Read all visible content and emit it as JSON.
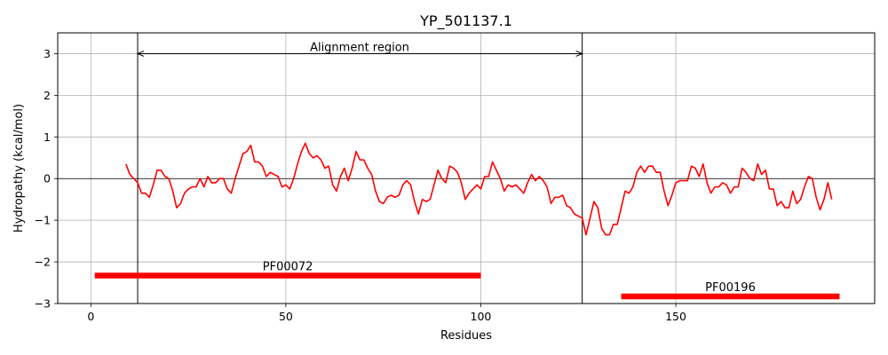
{
  "chart_data": {
    "type": "line",
    "title": "YP_501137.1",
    "xlabel": "Residues",
    "ylabel": "Hydropathy (kcal/mol)",
    "xlim": [
      -8.5,
      201
    ],
    "ylim": [
      -3,
      3.5
    ],
    "xticks": [
      0,
      50,
      100,
      150
    ],
    "yticks": [
      -3,
      -2,
      -1,
      0,
      1,
      2,
      3
    ],
    "grid": true,
    "series": [
      {
        "color": "#ff0000",
        "points": [
          [
            9,
            0.35
          ],
          [
            10,
            0.1
          ],
          [
            11,
            0.0
          ],
          [
            12,
            -0.1
          ],
          [
            13,
            -0.35
          ],
          [
            14,
            -0.35
          ],
          [
            15,
            -0.45
          ],
          [
            16,
            -0.15
          ],
          [
            17,
            0.2
          ],
          [
            18,
            0.2
          ],
          [
            19,
            0.05
          ],
          [
            20,
            0.0
          ],
          [
            21,
            -0.3
          ],
          [
            22,
            -0.7
          ],
          [
            23,
            -0.6
          ],
          [
            24,
            -0.35
          ],
          [
            25,
            -0.25
          ],
          [
            26,
            -0.2
          ],
          [
            27,
            -0.2
          ],
          [
            28,
            0.0
          ],
          [
            29,
            -0.2
          ],
          [
            30,
            0.05
          ],
          [
            31,
            -0.1
          ],
          [
            32,
            -0.1
          ],
          [
            33,
            0.0
          ],
          [
            34,
            0.0
          ],
          [
            35,
            -0.25
          ],
          [
            36,
            -0.35
          ],
          [
            37,
            0.0
          ],
          [
            38,
            0.3
          ],
          [
            39,
            0.6
          ],
          [
            40,
            0.65
          ],
          [
            41,
            0.8
          ],
          [
            42,
            0.4
          ],
          [
            43,
            0.4
          ],
          [
            44,
            0.3
          ],
          [
            45,
            0.05
          ],
          [
            46,
            0.15
          ],
          [
            47,
            0.1
          ],
          [
            48,
            0.05
          ],
          [
            49,
            -0.2
          ],
          [
            50,
            -0.15
          ],
          [
            51,
            -0.25
          ],
          [
            52,
            0.0
          ],
          [
            53,
            0.35
          ],
          [
            54,
            0.65
          ],
          [
            55,
            0.85
          ],
          [
            56,
            0.6
          ],
          [
            57,
            0.5
          ],
          [
            58,
            0.55
          ],
          [
            59,
            0.45
          ],
          [
            60,
            0.25
          ],
          [
            61,
            0.3
          ],
          [
            62,
            -0.15
          ],
          [
            63,
            -0.3
          ],
          [
            64,
            0.05
          ],
          [
            65,
            0.25
          ],
          [
            66,
            -0.05
          ],
          [
            67,
            0.25
          ],
          [
            68,
            0.65
          ],
          [
            69,
            0.45
          ],
          [
            70,
            0.45
          ],
          [
            71,
            0.25
          ],
          [
            72,
            0.1
          ],
          [
            73,
            -0.3
          ],
          [
            74,
            -0.55
          ],
          [
            75,
            -0.6
          ],
          [
            76,
            -0.45
          ],
          [
            77,
            -0.4
          ],
          [
            78,
            -0.45
          ],
          [
            79,
            -0.4
          ],
          [
            80,
            -0.15
          ],
          [
            81,
            -0.05
          ],
          [
            82,
            -0.15
          ],
          [
            83,
            -0.55
          ],
          [
            84,
            -0.85
          ],
          [
            85,
            -0.5
          ],
          [
            86,
            -0.55
          ],
          [
            87,
            -0.5
          ],
          [
            88,
            -0.15
          ],
          [
            89,
            0.2
          ],
          [
            90,
            0.0
          ],
          [
            91,
            -0.1
          ],
          [
            92,
            0.3
          ],
          [
            93,
            0.25
          ],
          [
            94,
            0.15
          ],
          [
            95,
            -0.1
          ],
          [
            96,
            -0.5
          ],
          [
            97,
            -0.35
          ],
          [
            98,
            -0.25
          ],
          [
            99,
            -0.15
          ],
          [
            100,
            -0.25
          ],
          [
            101,
            0.05
          ],
          [
            102,
            0.05
          ],
          [
            103,
            0.4
          ],
          [
            104,
            0.2
          ],
          [
            105,
            0.0
          ],
          [
            106,
            -0.3
          ],
          [
            107,
            -0.15
          ],
          [
            108,
            -0.2
          ],
          [
            109,
            -0.15
          ],
          [
            110,
            -0.25
          ],
          [
            111,
            -0.35
          ],
          [
            112,
            -0.1
          ],
          [
            113,
            0.1
          ],
          [
            114,
            -0.05
          ],
          [
            115,
            0.05
          ],
          [
            116,
            -0.05
          ],
          [
            117,
            -0.2
          ],
          [
            118,
            -0.6
          ],
          [
            119,
            -0.45
          ],
          [
            120,
            -0.45
          ],
          [
            121,
            -0.4
          ],
          [
            122,
            -0.65
          ],
          [
            123,
            -0.7
          ],
          [
            124,
            -0.85
          ],
          [
            125,
            -0.9
          ],
          [
            126,
            -0.95
          ],
          [
            127,
            -1.35
          ],
          [
            128,
            -0.95
          ],
          [
            129,
            -0.55
          ],
          [
            130,
            -0.7
          ],
          [
            131,
            -1.2
          ],
          [
            132,
            -1.35
          ],
          [
            133,
            -1.35
          ],
          [
            134,
            -1.1
          ],
          [
            135,
            -1.1
          ],
          [
            136,
            -0.7
          ],
          [
            137,
            -0.3
          ],
          [
            138,
            -0.35
          ],
          [
            139,
            -0.2
          ],
          [
            140,
            0.15
          ],
          [
            141,
            0.3
          ],
          [
            142,
            0.15
          ],
          [
            143,
            0.3
          ],
          [
            144,
            0.3
          ],
          [
            145,
            0.15
          ],
          [
            146,
            0.15
          ],
          [
            147,
            -0.3
          ],
          [
            148,
            -0.65
          ],
          [
            149,
            -0.4
          ],
          [
            150,
            -0.1
          ],
          [
            151,
            -0.05
          ],
          [
            152,
            -0.05
          ],
          [
            153,
            -0.05
          ],
          [
            154,
            0.3
          ],
          [
            155,
            0.25
          ],
          [
            156,
            0.05
          ],
          [
            157,
            0.35
          ],
          [
            158,
            -0.1
          ],
          [
            159,
            -0.35
          ],
          [
            160,
            -0.2
          ],
          [
            161,
            -0.2
          ],
          [
            162,
            -0.1
          ],
          [
            163,
            -0.15
          ],
          [
            164,
            -0.35
          ],
          [
            165,
            -0.2
          ],
          [
            166,
            -0.2
          ],
          [
            167,
            0.25
          ],
          [
            168,
            0.15
          ],
          [
            169,
            0.0
          ],
          [
            170,
            -0.05
          ],
          [
            171,
            0.35
          ],
          [
            172,
            0.1
          ],
          [
            173,
            0.2
          ],
          [
            174,
            -0.25
          ],
          [
            175,
            -0.25
          ],
          [
            176,
            -0.65
          ],
          [
            177,
            -0.55
          ],
          [
            178,
            -0.7
          ],
          [
            179,
            -0.7
          ],
          [
            180,
            -0.3
          ],
          [
            181,
            -0.6
          ],
          [
            182,
            -0.5
          ],
          [
            183,
            -0.2
          ],
          [
            184,
            0.05
          ],
          [
            185,
            0.0
          ],
          [
            186,
            -0.45
          ],
          [
            187,
            -0.75
          ],
          [
            188,
            -0.5
          ],
          [
            189,
            -0.1
          ],
          [
            190,
            -0.5
          ]
        ]
      }
    ],
    "vlines": [
      12,
      126
    ],
    "hline": 0,
    "alignment_region": {
      "label": "Alignment region",
      "x_start": 12,
      "x_end": 126,
      "y": 3
    },
    "domains": [
      {
        "name": "PF00072",
        "x_start": 1,
        "x_end": 100,
        "y": -2.33,
        "color": "#ff0000"
      },
      {
        "name": "PF00196",
        "x_start": 136,
        "x_end": 192,
        "y": -2.83,
        "color": "#ff0000"
      }
    ]
  }
}
